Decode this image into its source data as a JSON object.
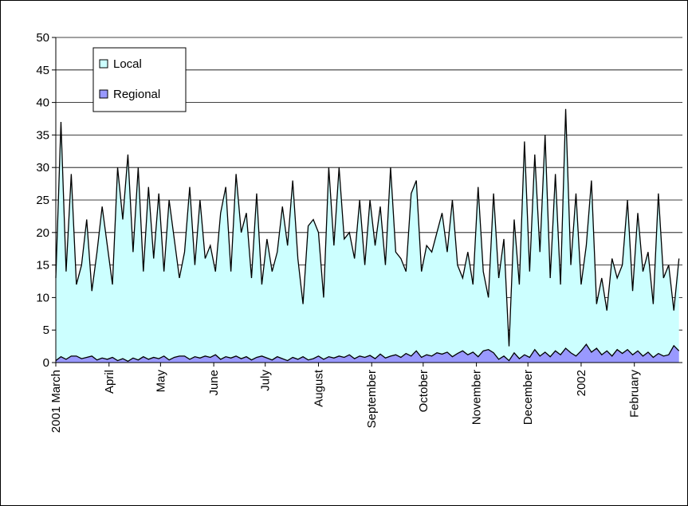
{
  "chart_data": {
    "type": "area",
    "x": [
      0,
      3,
      6,
      9,
      12,
      15,
      18,
      21,
      24,
      27,
      30,
      33,
      36,
      39,
      42,
      45,
      48,
      51,
      54,
      57,
      60,
      63,
      66,
      69,
      72,
      75,
      78,
      81,
      84,
      87,
      90,
      93,
      96,
      99,
      102,
      105,
      108,
      111,
      114,
      117,
      120,
      123,
      126,
      129,
      132,
      135,
      138,
      141,
      144,
      147,
      150,
      153,
      156,
      159,
      162,
      165,
      168,
      171,
      174,
      177,
      180,
      183,
      186,
      189,
      192,
      195,
      198,
      201,
      204,
      207,
      210,
      213,
      216,
      219,
      222,
      225,
      228,
      231,
      234,
      237,
      240,
      243,
      246,
      249,
      252,
      255,
      258,
      261,
      264,
      267,
      270,
      273,
      276,
      279,
      282,
      285,
      288,
      291,
      294,
      297,
      300,
      303,
      306,
      309,
      312,
      315,
      318,
      321,
      324,
      327,
      330,
      333,
      336,
      339,
      342,
      345,
      348,
      351,
      354,
      357,
      360,
      363
    ],
    "series": [
      {
        "name": "Local",
        "color": "#ccffff",
        "values": [
          13,
          37,
          14,
          29,
          12,
          15,
          22,
          11,
          17,
          24,
          18,
          12,
          30,
          22,
          32,
          17,
          30,
          14,
          27,
          16,
          26,
          14,
          25,
          19,
          13,
          17,
          27,
          15,
          25,
          16,
          18,
          14,
          23,
          27,
          14,
          29,
          20,
          23,
          13,
          26,
          12,
          19,
          14,
          17,
          24,
          18,
          28,
          16,
          9,
          21,
          22,
          20,
          10,
          30,
          18,
          30,
          19,
          20,
          16,
          25,
          15,
          25,
          18,
          24,
          15,
          30,
          17,
          16,
          14,
          26,
          28,
          14,
          18,
          17,
          20,
          23,
          17,
          25,
          15,
          13,
          17,
          12,
          27,
          14,
          10,
          26,
          13,
          19,
          2.5,
          22,
          12,
          34,
          14,
          32,
          17,
          35,
          13,
          29,
          12,
          39,
          15,
          26,
          12,
          18,
          28,
          9,
          13,
          8,
          16,
          13,
          15,
          25,
          11,
          23,
          14,
          17,
          9,
          26,
          13,
          15,
          8,
          16
        ]
      },
      {
        "name": "Regional",
        "color": "#9999ff",
        "values": [
          0.3,
          0.9,
          0.5,
          1,
          1,
          0.6,
          0.8,
          1,
          0.4,
          0.7,
          0.5,
          0.8,
          0.3,
          0.6,
          0.2,
          0.7,
          0.4,
          0.9,
          0.5,
          0.8,
          0.6,
          1,
          0.4,
          0.8,
          1,
          1,
          0.5,
          0.9,
          0.7,
          1,
          0.8,
          1.2,
          0.5,
          0.9,
          0.7,
          1,
          0.6,
          0.9,
          0.4,
          0.8,
          1,
          0.7,
          0.4,
          0.9,
          0.6,
          0.3,
          0.8,
          0.5,
          0.9,
          0.4,
          0.6,
          1,
          0.5,
          0.9,
          0.7,
          1,
          0.8,
          1.2,
          0.6,
          1,
          0.8,
          1.1,
          0.6,
          1.3,
          0.7,
          1,
          1.2,
          0.8,
          1.4,
          1,
          1.8,
          0.8,
          1.2,
          1,
          1.5,
          1.3,
          1.6,
          0.9,
          1.4,
          1.8,
          1.2,
          1.6,
          0.9,
          1.8,
          2,
          1.5,
          0.5,
          1,
          0.3,
          1.5,
          0.6,
          1.2,
          0.8,
          2,
          1,
          1.6,
          0.9,
          1.8,
          1.2,
          2.2,
          1.5,
          1,
          1.8,
          2.8,
          1.6,
          2.2,
          1.2,
          1.8,
          1,
          2,
          1.4,
          2,
          1.2,
          1.8,
          1,
          1.6,
          0.8,
          1.4,
          1,
          1.2,
          2.6,
          1.8
        ]
      }
    ],
    "xlim": [
      0,
      365
    ],
    "xticks": [
      {
        "value": 0,
        "label": "2001 March"
      },
      {
        "value": 31,
        "label": "April"
      },
      {
        "value": 61,
        "label": "May"
      },
      {
        "value": 92,
        "label": "June"
      },
      {
        "value": 122,
        "label": "July"
      },
      {
        "value": 153,
        "label": "August"
      },
      {
        "value": 184,
        "label": "September"
      },
      {
        "value": 214,
        "label": "October"
      },
      {
        "value": 245,
        "label": "November"
      },
      {
        "value": 275,
        "label": "December"
      },
      {
        "value": 306,
        "label": "2002"
      },
      {
        "value": 337,
        "label": "February"
      }
    ],
    "ylim": [
      0,
      50
    ],
    "yticks": [
      0,
      5,
      10,
      15,
      20,
      25,
      30,
      35,
      40,
      45,
      50
    ],
    "grid": true,
    "legend": "upper left"
  }
}
